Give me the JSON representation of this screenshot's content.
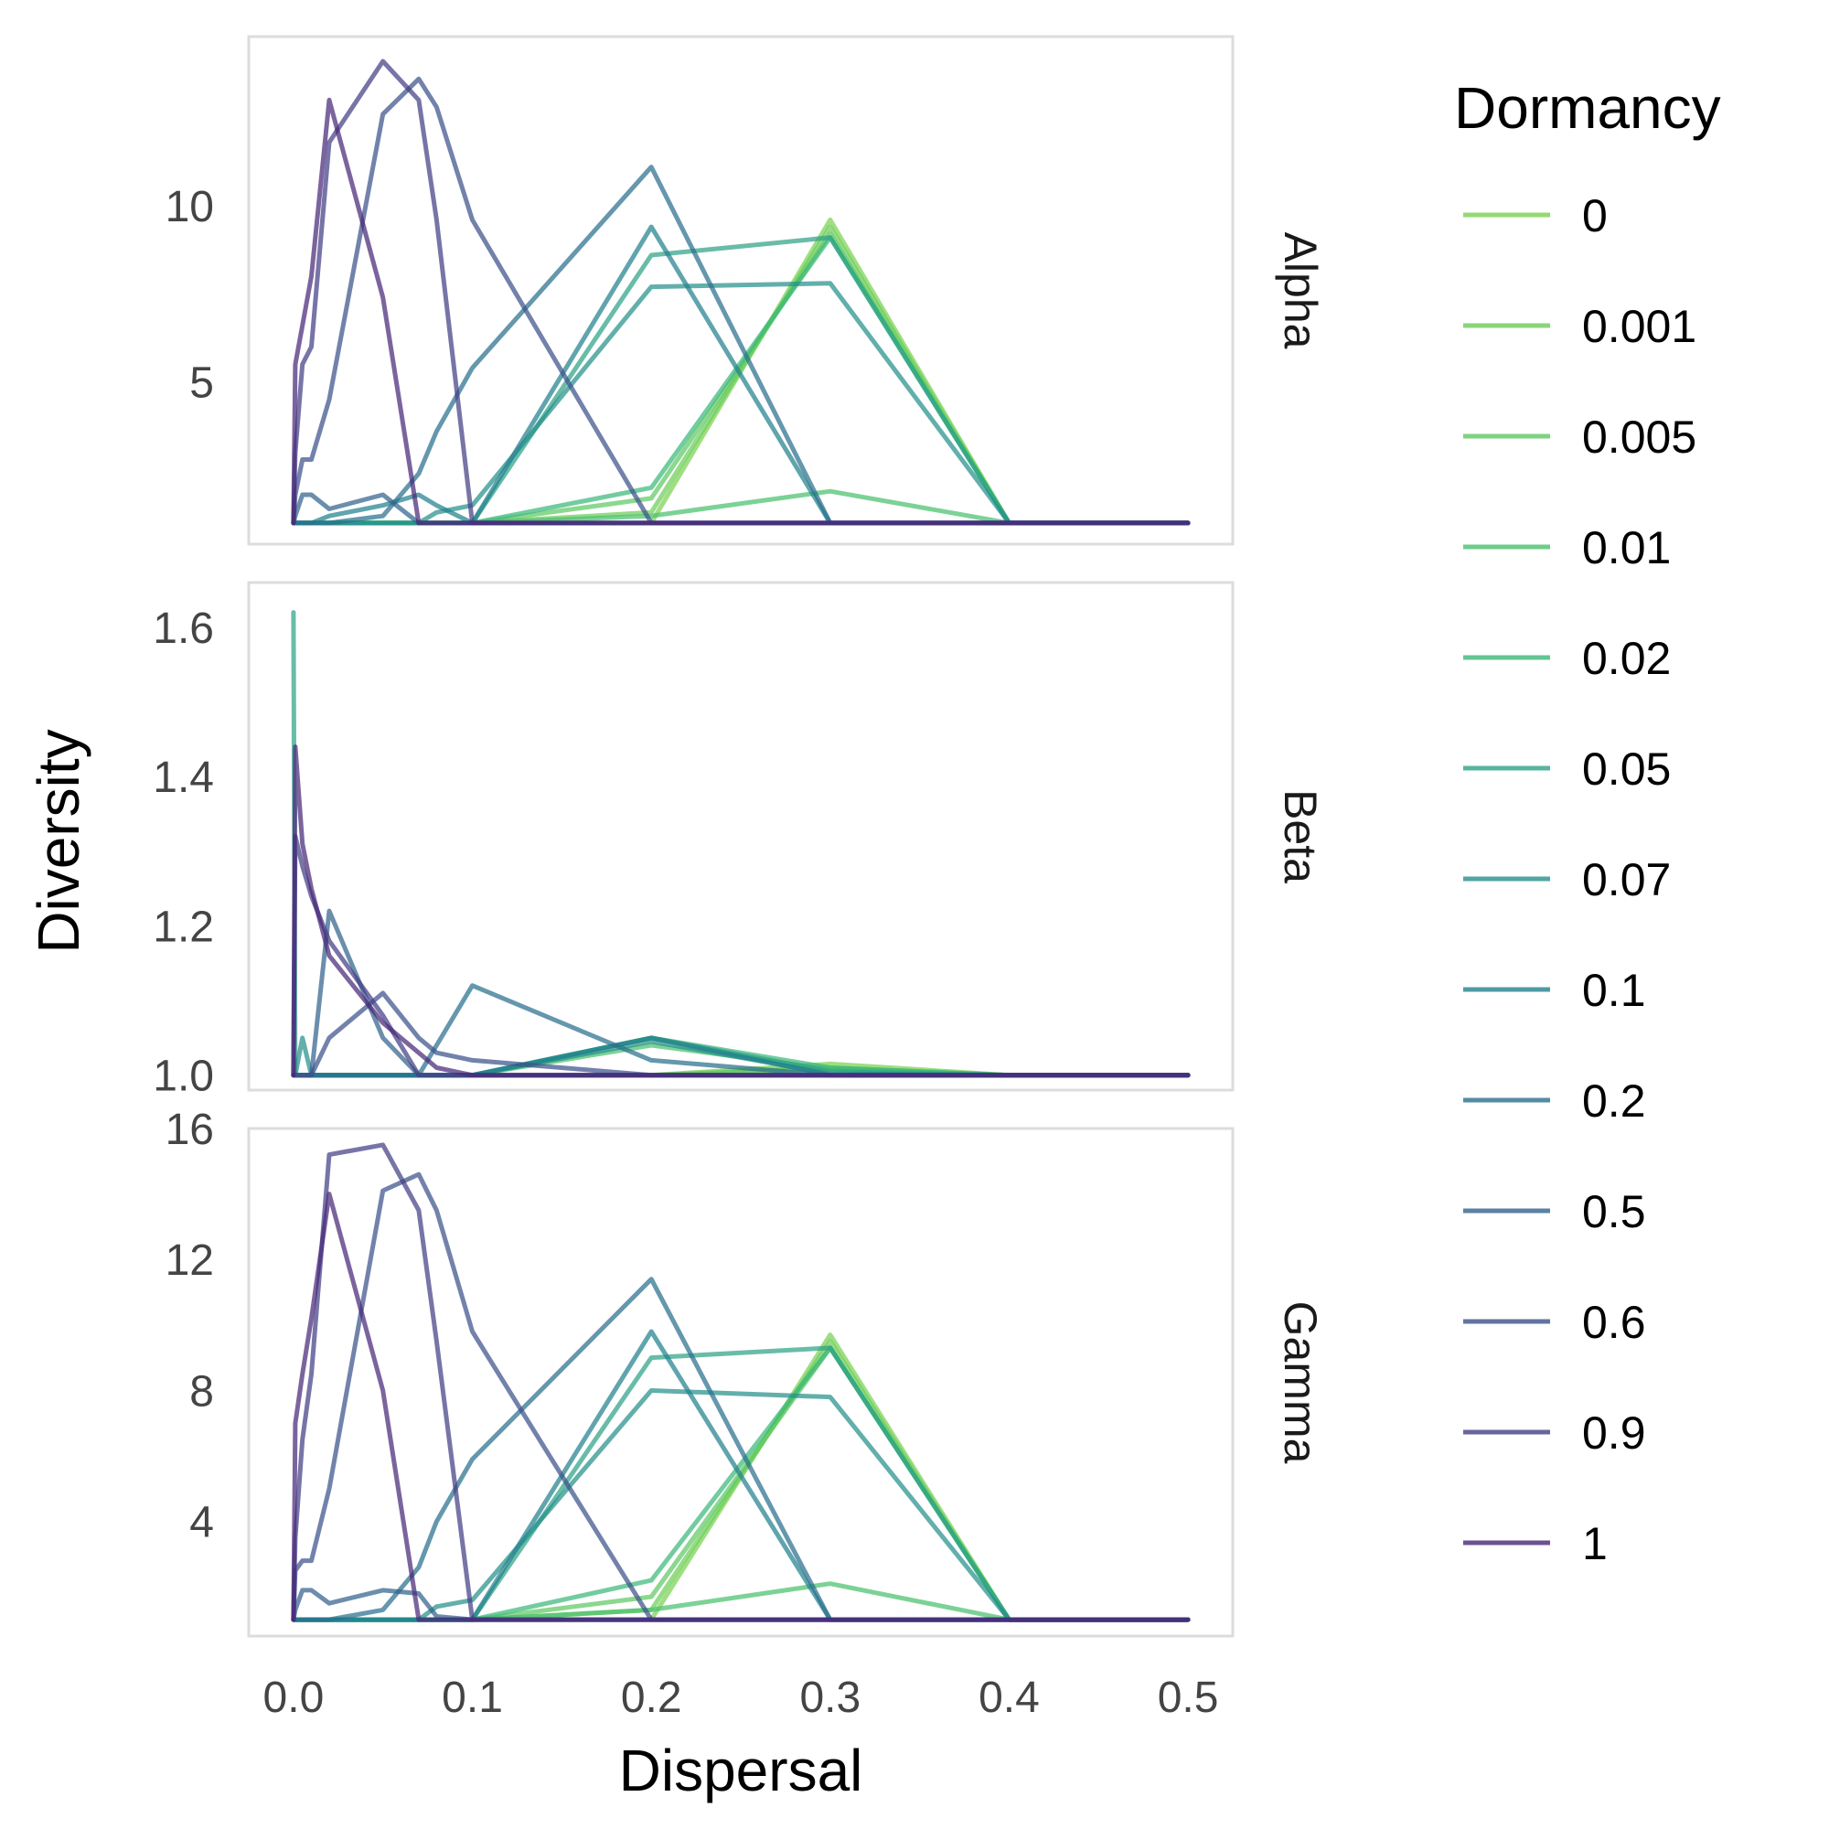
{
  "chart_data": {
    "type": "line",
    "xlabel": "Dispersal",
    "ylabel": "Diversity",
    "xlim": [
      -0.025,
      0.525
    ],
    "x_ticks": [
      0.0,
      0.1,
      0.2,
      0.3,
      0.4,
      0.5
    ],
    "x_tick_labels": [
      "0.0",
      "0.1",
      "0.2",
      "0.3",
      "0.4",
      "0.5"
    ],
    "grid": false,
    "legend": {
      "title": "Dormancy",
      "position": "right",
      "entries": [
        {
          "label": "0",
          "color": "#7ad151"
        },
        {
          "label": "0.001",
          "color": "#6ccd5a"
        },
        {
          "label": "0.005",
          "color": "#5ec962"
        },
        {
          "label": "0.01",
          "color": "#4ac16d"
        },
        {
          "label": "0.02",
          "color": "#3bb87a"
        },
        {
          "label": "0.05",
          "color": "#2ea286"
        },
        {
          "label": "0.07",
          "color": "#26908b"
        },
        {
          "label": "0.1",
          "color": "#22818d"
        },
        {
          "label": "0.2",
          "color": "#2a6f8e"
        },
        {
          "label": "0.5",
          "color": "#33638d"
        },
        {
          "label": "0.6",
          "color": "#3b528b"
        },
        {
          "label": "0.9",
          "color": "#433e85"
        },
        {
          "label": "1",
          "color": "#482878"
        }
      ]
    },
    "x": [
      0.0,
      0.001,
      0.005,
      0.01,
      0.02,
      0.05,
      0.07,
      0.08,
      0.1,
      0.2,
      0.3,
      0.4,
      0.5
    ],
    "panels": [
      {
        "strip": "Alpha",
        "ylim": [
          0.4,
          14.8
        ],
        "y_ticks": [
          5,
          10
        ],
        "y_tick_labels": [
          "5",
          "10"
        ],
        "series": [
          {
            "name": "0",
            "values": [
              1,
              1,
              1,
              1,
              1,
              1,
              1,
              1,
              1,
              1.0,
              9.6,
              1,
              1
            ]
          },
          {
            "name": "0.001",
            "values": [
              1,
              1,
              1,
              1,
              1,
              1,
              1,
              1,
              1,
              1.3,
              9.4,
              1,
              1
            ]
          },
          {
            "name": "0.005",
            "values": [
              1,
              1,
              1,
              1,
              1,
              1,
              1,
              1,
              1,
              1.7,
              9.2,
              1,
              1
            ]
          },
          {
            "name": "0.01",
            "values": [
              1,
              1,
              1,
              1,
              1,
              1,
              1,
              1,
              1,
              1.2,
              1.9,
              1,
              1
            ]
          },
          {
            "name": "0.02",
            "values": [
              1,
              1,
              1,
              1,
              1,
              1,
              1,
              1,
              1,
              2.0,
              9.1,
              1,
              1
            ]
          },
          {
            "name": "0.05",
            "values": [
              1,
              1,
              1,
              1,
              1,
              1,
              1,
              1,
              1,
              8.6,
              9.1,
              1,
              1
            ]
          },
          {
            "name": "0.07",
            "values": [
              1,
              1,
              1,
              1,
              1,
              1,
              1,
              1.3,
              1.5,
              7.7,
              7.8,
              1,
              1
            ]
          },
          {
            "name": "0.1",
            "values": [
              1,
              1,
              1,
              1.0,
              1.2,
              1.5,
              1.8,
              1.5,
              1,
              9.4,
              1,
              1,
              1
            ]
          },
          {
            "name": "0.2",
            "values": [
              1,
              1,
              1,
              1.0,
              1.0,
              1.2,
              2.4,
              3.6,
              5.4,
              11.1,
              1,
              1,
              1
            ]
          },
          {
            "name": "0.5",
            "values": [
              1,
              1.2,
              1.8,
              1.8,
              1.4,
              1.8,
              1.0,
              1.0,
              1,
              1,
              1,
              1,
              1
            ]
          },
          {
            "name": "0.6",
            "values": [
              1,
              1.8,
              2.8,
              2.8,
              4.5,
              12.6,
              13.6,
              12.8,
              9.6,
              1,
              1,
              1,
              1
            ]
          },
          {
            "name": "0.9",
            "values": [
              1,
              3.0,
              5.5,
              6.0,
              11.8,
              14.1,
              13.0,
              9.6,
              1,
              1,
              1,
              1,
              1
            ]
          },
          {
            "name": "1",
            "values": [
              1,
              5.5,
              6.6,
              8.0,
              13.0,
              7.4,
              1,
              1,
              1,
              1,
              1,
              1,
              1
            ]
          }
        ]
      },
      {
        "strip": "Beta",
        "ylim": [
          0.98,
          1.66
        ],
        "y_ticks": [
          1.0,
          1.2,
          1.4,
          1.6
        ],
        "y_tick_labels": [
          "1.0",
          "1.2",
          "1.4",
          "1.6"
        ],
        "series": [
          {
            "name": "0",
            "values": [
              1,
              1,
              1,
              1,
              1,
              1,
              1,
              1,
              1,
              1.0,
              1.015,
              1,
              1
            ]
          },
          {
            "name": "0.001",
            "values": [
              1,
              1,
              1,
              1,
              1,
              1,
              1,
              1,
              1,
              1.0,
              1.01,
              1,
              1
            ]
          },
          {
            "name": "0.005",
            "values": [
              1,
              1,
              1,
              1,
              1,
              1,
              1,
              1,
              1,
              1.0,
              1.008,
              1,
              1
            ]
          },
          {
            "name": "0.01",
            "values": [
              1,
              1,
              1,
              1,
              1,
              1,
              1,
              1,
              1,
              1.04,
              1.008,
              1,
              1
            ]
          },
          {
            "name": "0.02",
            "values": [
              1,
              1,
              1,
              1,
              1,
              1,
              1,
              1,
              1,
              1.05,
              1.01,
              1,
              1
            ]
          },
          {
            "name": "0.05",
            "values": [
              1.62,
              1.0,
              1,
              1,
              1,
              1,
              1,
              1,
              1,
              1.05,
              1.005,
              1,
              1
            ]
          },
          {
            "name": "0.07",
            "values": [
              1,
              1.0,
              1.05,
              1.0,
              1.0,
              1,
              1,
              1,
              1,
              1.045,
              1.002,
              1,
              1
            ]
          },
          {
            "name": "0.1",
            "values": [
              1,
              1,
              1,
              1,
              1,
              1,
              1,
              1,
              1,
              1.05,
              1.0,
              1,
              1
            ]
          },
          {
            "name": "0.2",
            "values": [
              1,
              1,
              1,
              1,
              1,
              1,
              1.0,
              1.04,
              1.12,
              1.02,
              1,
              1,
              1
            ]
          },
          {
            "name": "0.5",
            "values": [
              1,
              1,
              1,
              1.0,
              1.22,
              1.05,
              1.0,
              1.0,
              1,
              1,
              1,
              1,
              1
            ]
          },
          {
            "name": "0.6",
            "values": [
              1,
              1,
              1,
              1,
              1.05,
              1.11,
              1.05,
              1.03,
              1.02,
              1.0,
              1,
              1,
              1
            ]
          },
          {
            "name": "0.9",
            "values": [
              1,
              1.32,
              1.28,
              1.24,
              1.18,
              1.08,
              1.0,
              1,
              1,
              1,
              1,
              1,
              1
            ]
          },
          {
            "name": "1",
            "values": [
              1,
              1.44,
              1.31,
              1.25,
              1.16,
              1.07,
              1.03,
              1.01,
              1.0,
              1,
              1,
              1,
              1
            ]
          }
        ]
      },
      {
        "strip": "Gamma",
        "ylim": [
          0.5,
          16.0
        ],
        "y_ticks": [
          4,
          8,
          12,
          16
        ],
        "y_tick_labels": [
          "4",
          "8",
          "12",
          "16"
        ],
        "series": [
          {
            "name": "0",
            "values": [
              1,
              1,
              1,
              1,
              1,
              1,
              1,
              1,
              1,
              1.0,
              9.7,
              1,
              1
            ]
          },
          {
            "name": "0.001",
            "values": [
              1,
              1,
              1,
              1,
              1,
              1,
              1,
              1,
              1,
              1.3,
              9.5,
              1,
              1
            ]
          },
          {
            "name": "0.005",
            "values": [
              1,
              1,
              1,
              1,
              1,
              1,
              1,
              1,
              1,
              1.7,
              9.3,
              1,
              1
            ]
          },
          {
            "name": "0.01",
            "values": [
              1,
              1,
              1,
              1,
              1,
              1,
              1,
              1,
              1,
              1.3,
              2.1,
              1,
              1
            ]
          },
          {
            "name": "0.02",
            "values": [
              1,
              1,
              1,
              1,
              1,
              1,
              1,
              1,
              1,
              2.2,
              9.3,
              1,
              1
            ]
          },
          {
            "name": "0.05",
            "values": [
              1,
              1,
              1,
              1,
              1,
              1,
              1,
              1,
              1,
              9.0,
              9.3,
              1,
              1
            ]
          },
          {
            "name": "0.07",
            "values": [
              1,
              1,
              1,
              1,
              1,
              1,
              1,
              1.4,
              1.6,
              8.0,
              7.8,
              1,
              1
            ]
          },
          {
            "name": "0.1",
            "values": [
              1,
              1,
              1,
              1,
              1,
              1,
              1,
              1,
              1,
              9.8,
              1,
              1,
              1
            ]
          },
          {
            "name": "0.2",
            "values": [
              1,
              1,
              1,
              1,
              1,
              1.3,
              2.6,
              4.0,
              5.9,
              11.4,
              1,
              1,
              1
            ]
          },
          {
            "name": "0.5",
            "values": [
              1,
              1.3,
              1.9,
              1.9,
              1.5,
              1.9,
              1.8,
              1.1,
              1,
              1,
              1,
              1,
              1
            ]
          },
          {
            "name": "0.6",
            "values": [
              1,
              2.5,
              2.8,
              2.8,
              5.0,
              14.1,
              14.6,
              13.5,
              9.8,
              1,
              1,
              1,
              1
            ]
          },
          {
            "name": "0.9",
            "values": [
              1,
              3.5,
              6.5,
              8.5,
              15.2,
              15.5,
              13.5,
              9.5,
              1,
              1,
              1,
              1,
              1
            ]
          },
          {
            "name": "1",
            "values": [
              1,
              7.0,
              8.5,
              10.2,
              14.0,
              8.0,
              1,
              1,
              1,
              1,
              1,
              1,
              1
            ]
          }
        ]
      }
    ]
  }
}
